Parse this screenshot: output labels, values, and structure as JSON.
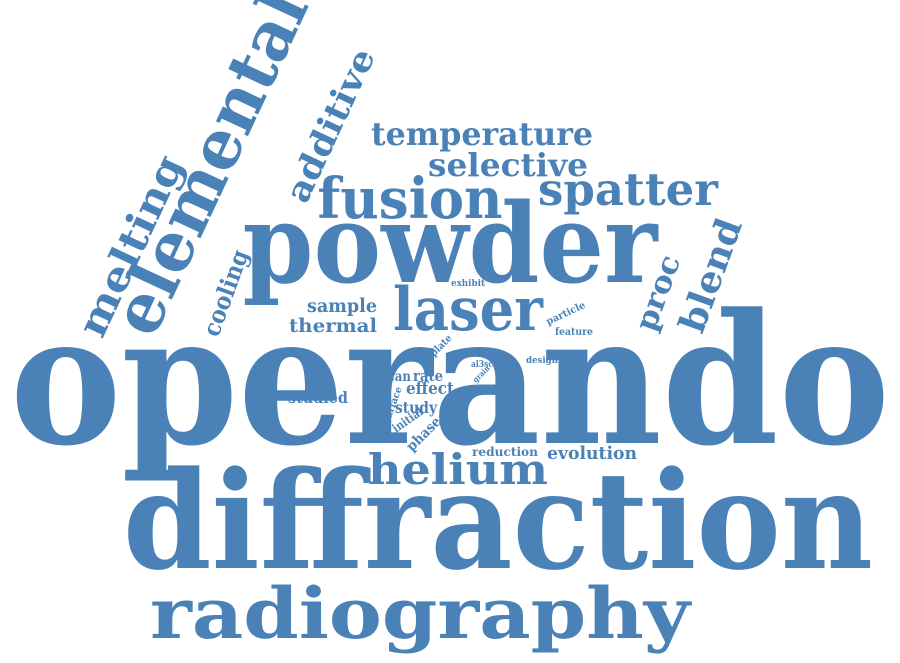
{
  "colors": {
    "word": "#4a82b8",
    "background": "#ffffff"
  },
  "words": [
    "operando",
    "diffraction",
    "radiography",
    "powder",
    "elemental",
    "fusion",
    "laser",
    "spatter",
    "helium",
    "melting",
    "temperature",
    "selective",
    "additive",
    "blend",
    "proc",
    "cooling",
    "thermal",
    "sample",
    "studied",
    "evolution",
    "effect",
    "study",
    "rate",
    "scan",
    "phase",
    "reduction",
    "initial",
    "surface",
    "plate",
    "build",
    "al3sc",
    "grain",
    "exhibit",
    "particle",
    "feature",
    "design"
  ]
}
